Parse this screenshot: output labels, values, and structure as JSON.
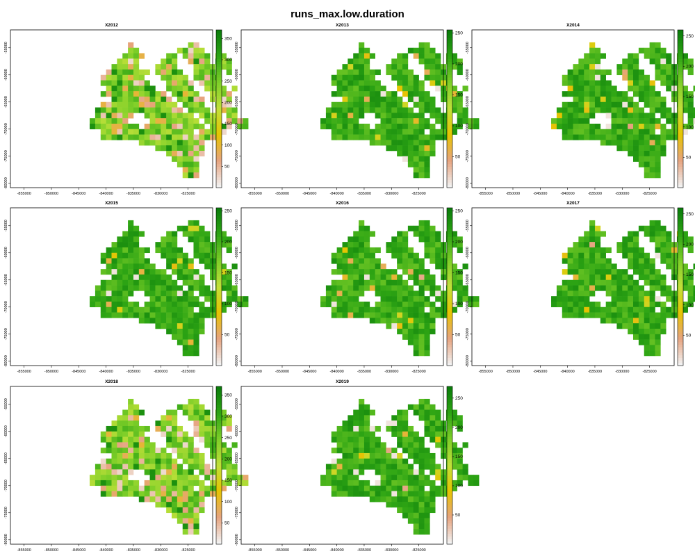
{
  "title": "runs_max.low.duration",
  "palette": [
    "#f2f2f2",
    "#e6a37f",
    "#e6c400",
    "#c1e03a",
    "#7fcf29",
    "#2ea514",
    "#0b7d0b"
  ],
  "chart_data": {
    "type": "heatmap",
    "x_ticks": [
      "-855000",
      "-850000",
      "-845000",
      "-840000",
      "-835000",
      "-830000",
      "-825000"
    ],
    "y_ticks": [
      "-80000",
      "-75000",
      "-70000",
      "-65000",
      "-60000",
      "-55000"
    ],
    "panels": [
      {
        "name": "X2012",
        "legend_ticks": [
          "50",
          "100",
          "150",
          "200",
          "250",
          "300",
          "350"
        ],
        "vmax": 370
      },
      {
        "name": "X2013",
        "legend_ticks": [
          "50",
          "100",
          "150",
          "200",
          "250"
        ],
        "vmax": 255
      },
      {
        "name": "X2014",
        "legend_ticks": [
          "50",
          "100",
          "150",
          "200",
          "250"
        ],
        "vmax": 260
      },
      {
        "name": "X2015",
        "legend_ticks": [
          "50",
          "100",
          "150",
          "200",
          "250"
        ],
        "vmax": 255
      },
      {
        "name": "X2016",
        "legend_ticks": [
          "50",
          "100",
          "150",
          "200",
          "250"
        ],
        "vmax": 255
      },
      {
        "name": "X2017",
        "legend_ticks": [
          "50",
          "100",
          "150",
          "200",
          "250"
        ],
        "vmax": 260
      },
      {
        "name": "X2018",
        "legend_ticks": [
          "50",
          "100",
          "150",
          "200",
          "250",
          "300",
          "350"
        ],
        "vmax": 370
      },
      {
        "name": "X2019",
        "legend_ticks": [
          "50",
          "100",
          "150",
          "200",
          "250"
        ],
        "vmax": 270
      }
    ]
  }
}
